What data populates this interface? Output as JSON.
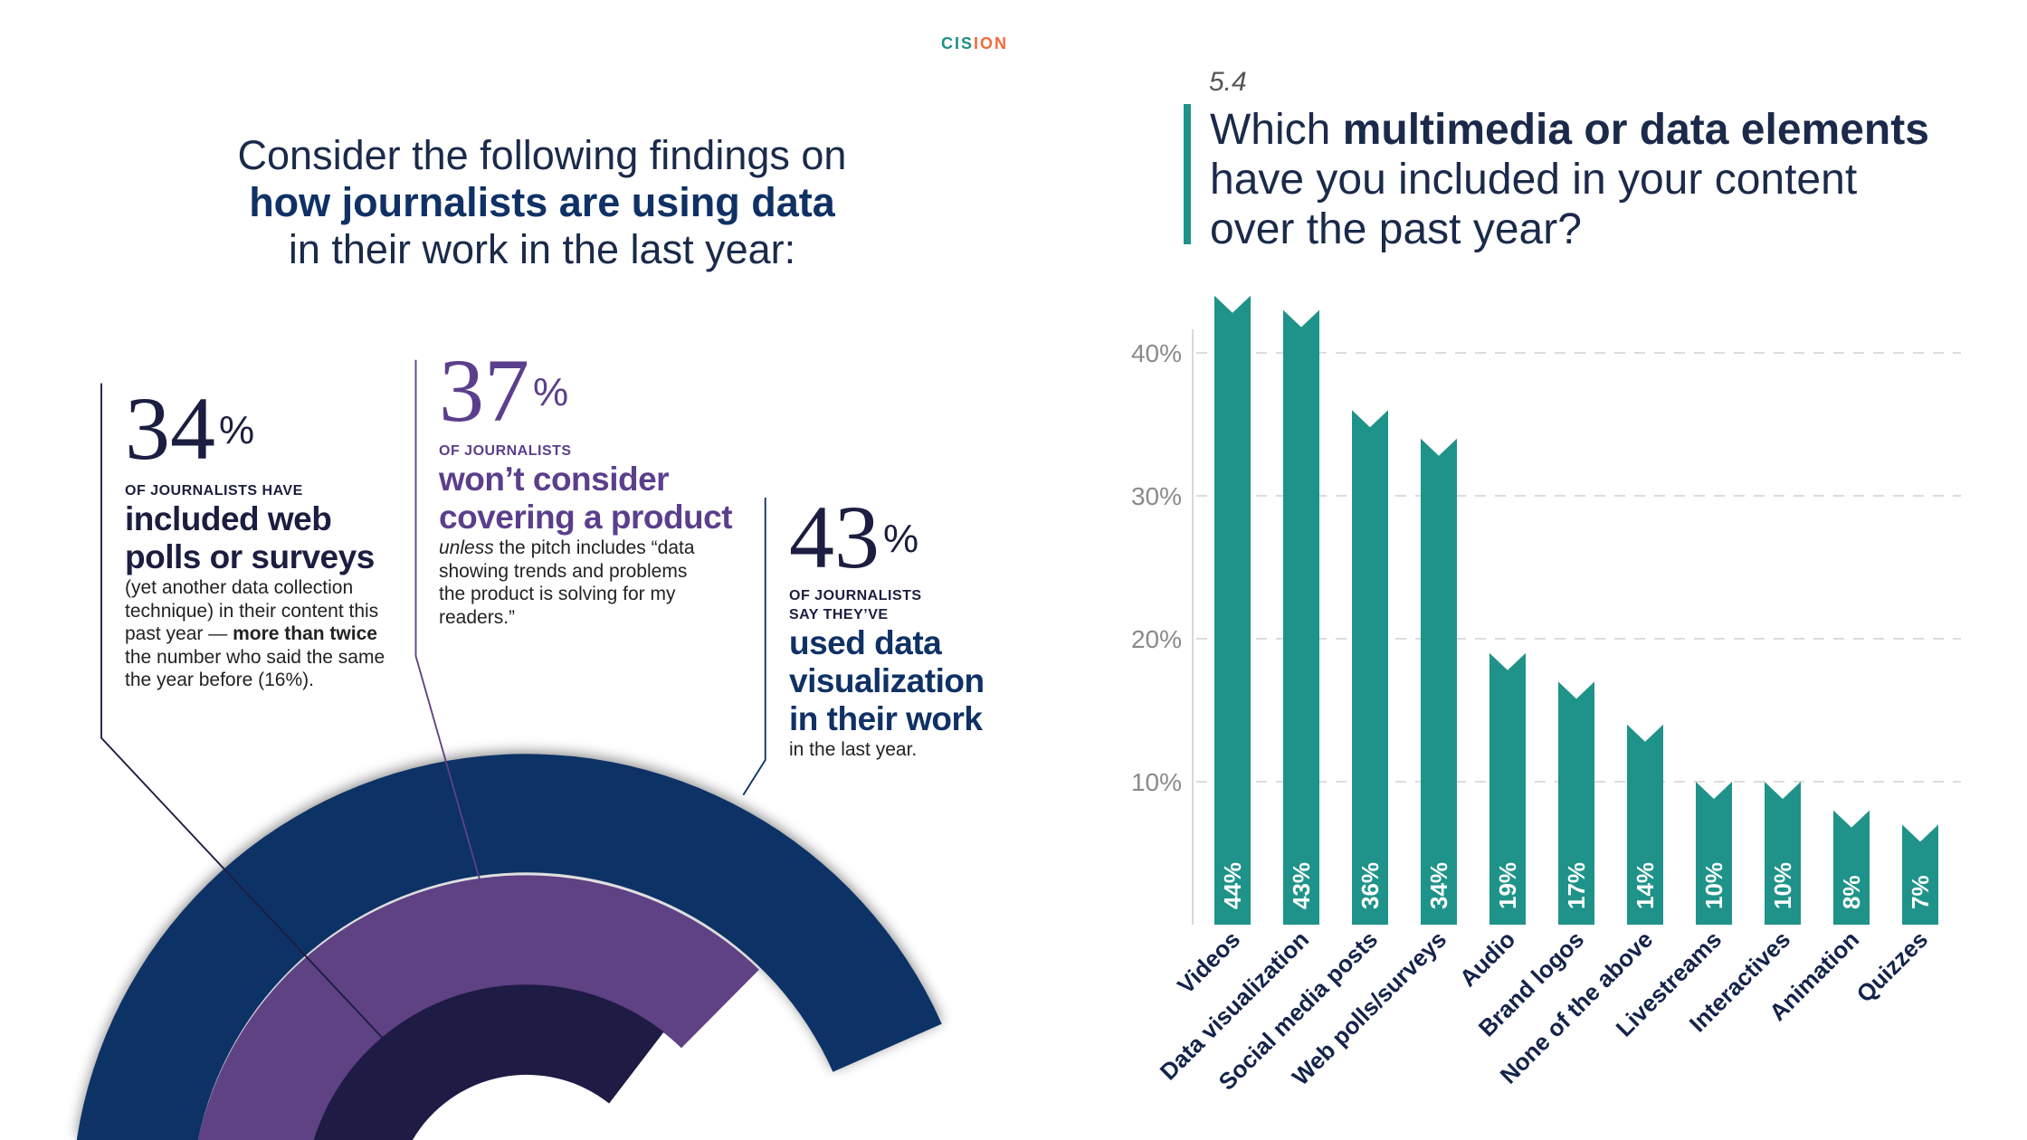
{
  "logo": {
    "text": "CISION",
    "part1": "CIS",
    "part2": "ION"
  },
  "left": {
    "title_line1": "Consider the following findings on",
    "title_line2": "how journalists are using data",
    "title_line3": "in their work in the last year:",
    "stats": [
      {
        "value": "34",
        "unit": "%",
        "kicker": "OF JOURNALISTS HAVE",
        "headline_1": "included web",
        "headline_2": "polls or surveys",
        "body_1": "(yet another data collection technique) in their content this past year — ",
        "body_bold_1": "more than twice",
        "body_2": " the number who said the same the year before (16%)."
      },
      {
        "value": "37",
        "unit": "%",
        "kicker": "OF JOURNALISTS",
        "headline_1": "won’t consider",
        "headline_2": "covering a product",
        "body_italic": "unless",
        "body_1": " the pitch includes “data showing trends and problems the product is solving for my readers.”"
      },
      {
        "value": "43",
        "unit": "%",
        "kicker_1": "OF JOURNALISTS",
        "kicker_2": "SAY THEY’VE",
        "headline_1": "used data",
        "headline_2": "visualization",
        "headline_3": "in their work",
        "body_1": "in the last year."
      }
    ]
  },
  "question": {
    "number": "5.4",
    "line1_pre": "Which ",
    "line1_bold": "multimedia or data elements",
    "line2": "have you included in your content",
    "line3": "over the past year?"
  },
  "colors": {
    "teal": "#1f9389",
    "navy": "#0f3165",
    "purple": "#5e4284",
    "dark": "#1e1b45",
    "logo_orange": "#f26b3a"
  },
  "chart_data": {
    "type": "bar",
    "categories": [
      "Videos",
      "Data visualization",
      "Social media posts",
      "Web polls/surveys",
      "Audio",
      "Brand logos",
      "None of the above",
      "Livestreams",
      "Interactives",
      "Animation",
      "Quizzes"
    ],
    "values": [
      44,
      43,
      36,
      34,
      19,
      17,
      14,
      10,
      10,
      8,
      7
    ],
    "value_labels": [
      "44%",
      "43%",
      "36%",
      "34%",
      "19%",
      "17%",
      "14%",
      "10%",
      "10%",
      "8%",
      "7%"
    ],
    "yticks": [
      10,
      20,
      30,
      40
    ],
    "ytick_labels": [
      "10%",
      "20%",
      "30%",
      "40%"
    ],
    "ylim": [
      0,
      45
    ],
    "grid": "horizontal dashed",
    "bar_color": "#1f9389"
  }
}
